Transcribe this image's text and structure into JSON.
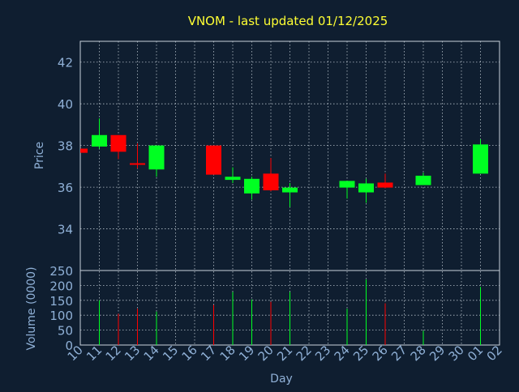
{
  "title": "VNOM - last updated 01/12/2025",
  "colors": {
    "background": "#0f1e30",
    "title": "#ffff33",
    "axis_text": "#8fb0d6",
    "frame": "#c8d2dc",
    "grid": "#b4bec8",
    "up": "#00ff22",
    "down": "#ff0000",
    "wick": "#ffffff"
  },
  "chart_data": [
    {
      "type": "candlestick",
      "ylabel": "Price",
      "ylim": [
        32.0,
        43.0
      ],
      "yticks": [
        34,
        36,
        38,
        40,
        42
      ],
      "grid": true,
      "x_categories": [
        "10",
        "11",
        "12",
        "13",
        "14",
        "15",
        "16",
        "17",
        "18",
        "19",
        "20",
        "21",
        "22",
        "23",
        "24",
        "25",
        "26",
        "27",
        "28",
        "29",
        "30",
        "01",
        "02"
      ],
      "candles": [
        {
          "day": "10",
          "open": 37.85,
          "high": 37.85,
          "low": 37.65,
          "close": 37.65
        },
        {
          "day": "11",
          "open": 37.95,
          "high": 39.3,
          "low": 37.85,
          "close": 38.5
        },
        {
          "day": "12",
          "open": 38.5,
          "high": 38.5,
          "low": 37.35,
          "close": 37.7
        },
        {
          "day": "13",
          "open": 37.15,
          "high": 38.1,
          "low": 36.9,
          "close": 37.1
        },
        {
          "day": "14",
          "open": 36.85,
          "high": 38.0,
          "low": 36.5,
          "close": 38.0
        },
        {
          "day": "17",
          "open": 38.0,
          "high": 38.0,
          "low": 36.6,
          "close": 36.6
        },
        {
          "day": "18",
          "open": 36.35,
          "high": 36.95,
          "low": 36.2,
          "close": 36.5
        },
        {
          "day": "19",
          "open": 35.7,
          "high": 36.5,
          "low": 35.4,
          "close": 36.4
        },
        {
          "day": "20",
          "open": 36.65,
          "high": 37.4,
          "low": 35.8,
          "close": 35.85
        },
        {
          "day": "21",
          "open": 35.75,
          "high": 36.2,
          "low": 35.05,
          "close": 35.98
        },
        {
          "day": "24",
          "open": 35.98,
          "high": 36.3,
          "low": 35.45,
          "close": 36.3
        },
        {
          "day": "25",
          "open": 35.75,
          "high": 36.4,
          "low": 35.25,
          "close": 36.18
        },
        {
          "day": "26",
          "open": 36.22,
          "high": 36.65,
          "low": 35.95,
          "close": 35.98
        },
        {
          "day": "28",
          "open": 36.1,
          "high": 36.7,
          "low": 36.1,
          "close": 36.55
        },
        {
          "day": "01",
          "open": 36.65,
          "high": 38.3,
          "low": 36.65,
          "close": 38.05
        }
      ]
    },
    {
      "type": "bar",
      "xlabel": "Day",
      "ylabel": "Volume (0000)",
      "ylim": [
        0,
        250
      ],
      "yticks": [
        0,
        50,
        100,
        150,
        200,
        250
      ],
      "grid": true,
      "x_categories": [
        "10",
        "11",
        "12",
        "13",
        "14",
        "15",
        "16",
        "17",
        "18",
        "19",
        "20",
        "21",
        "22",
        "23",
        "24",
        "25",
        "26",
        "27",
        "28",
        "29",
        "30",
        "01",
        "02"
      ],
      "volumes": [
        {
          "day": "11",
          "value": 150,
          "dir": "up"
        },
        {
          "day": "12",
          "value": 105,
          "dir": "down"
        },
        {
          "day": "13",
          "value": 122,
          "dir": "down"
        },
        {
          "day": "14",
          "value": 112,
          "dir": "up"
        },
        {
          "day": "17",
          "value": 135,
          "dir": "down"
        },
        {
          "day": "18",
          "value": 178,
          "dir": "up"
        },
        {
          "day": "19",
          "value": 153,
          "dir": "up"
        },
        {
          "day": "20",
          "value": 145,
          "dir": "down"
        },
        {
          "day": "21",
          "value": 178,
          "dir": "up"
        },
        {
          "day": "24",
          "value": 122,
          "dir": "up"
        },
        {
          "day": "25",
          "value": 220,
          "dir": "up"
        },
        {
          "day": "26",
          "value": 140,
          "dir": "down"
        },
        {
          "day": "28",
          "value": 48,
          "dir": "up"
        },
        {
          "day": "01",
          "value": 195,
          "dir": "up"
        }
      ]
    }
  ]
}
